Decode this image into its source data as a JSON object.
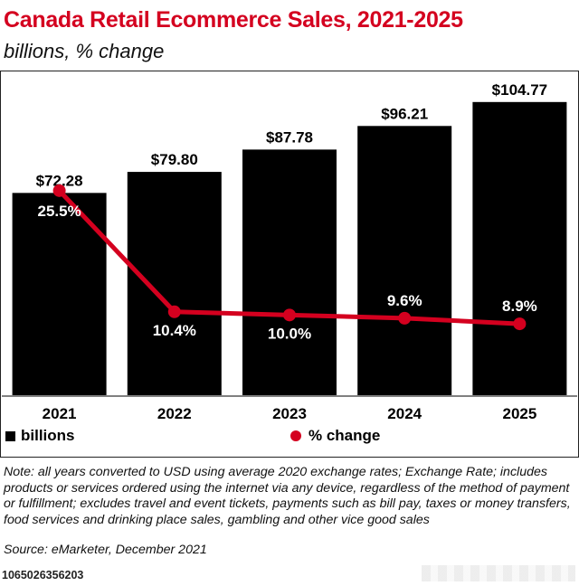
{
  "header": {
    "title": "Canada Retail Ecommerce Sales, 2021-2025",
    "subtitle": "billions, % change"
  },
  "colors": {
    "brand": "#d4001f",
    "bar": "#000000",
    "line": "#d4001f"
  },
  "chart_data": {
    "type": "bar",
    "title": "Canada Retail Ecommerce Sales, 2021-2025",
    "subtitle": "billions, % change",
    "categories": [
      "2021",
      "2022",
      "2023",
      "2024",
      "2025"
    ],
    "series": [
      {
        "name": "billions",
        "type": "bar",
        "values": [
          72.28,
          79.8,
          87.78,
          96.21,
          104.77
        ],
        "labels": [
          "$72.28",
          "$79.80",
          "$87.78",
          "$96.21",
          "$104.77"
        ]
      },
      {
        "name": "% change",
        "type": "line",
        "values": [
          25.5,
          10.4,
          10.0,
          9.6,
          8.9
        ],
        "labels": [
          "25.5%",
          "10.4%",
          "10.0%",
          "9.6%",
          "8.9%"
        ]
      }
    ],
    "ylim": [
      0,
      110
    ],
    "line_ylim": [
      0,
      38
    ],
    "legend": [
      "billions",
      "% change"
    ],
    "legend_position": "bottom"
  },
  "legend": {
    "bars_label": "billions",
    "line_label": "% change"
  },
  "footer": {
    "note": "Note: all years converted to USD using average 2020 exchange rates; Exchange Rate; includes products or services ordered using the internet via any device, regardless of the method of payment or fulfillment; excludes travel and event tickets, payments such as bill pay, taxes or money transfers, food services and drinking place sales, gambling and other vice good sales",
    "source": "Source: eMarketer, December 2021",
    "chart_id": "1065026356203"
  }
}
